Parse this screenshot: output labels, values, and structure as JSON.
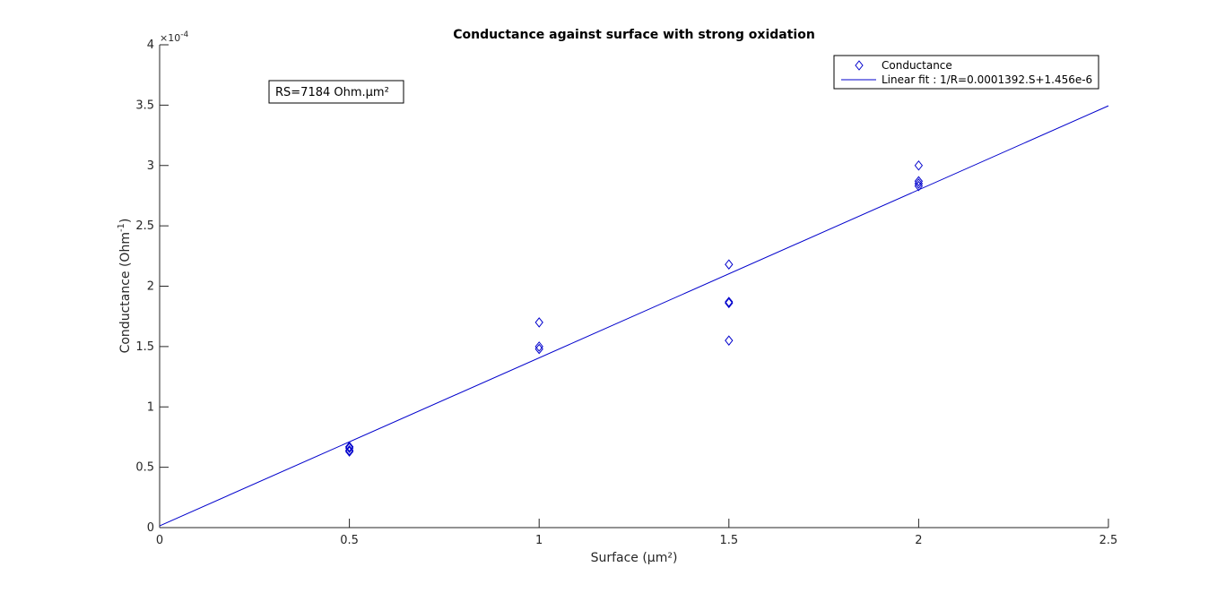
{
  "chart_data": {
    "type": "scatter",
    "title": "Conductance against surface with strong oxidation",
    "xlabel": "Surface (µm²)",
    "ylabel_main": "Conductance (Ohm",
    "ylabel_sup": "-1",
    "ylabel_close": ")",
    "y_exponent_base": "×10",
    "y_exponent_power": "-4",
    "xlim": [
      0,
      2.5
    ],
    "ylim": [
      0,
      4
    ],
    "y_scale_factor": 0.0001,
    "x_ticks": [
      0,
      0.5,
      1,
      1.5,
      2,
      2.5
    ],
    "x_tick_labels": [
      "0",
      "0.5",
      "1",
      "1.5",
      "2",
      "2.5"
    ],
    "y_ticks": [
      0,
      0.5,
      1,
      1.5,
      2,
      2.5,
      3,
      3.5,
      4
    ],
    "y_tick_labels": [
      "0",
      "0.5",
      "1",
      "1.5",
      "2",
      "2.5",
      "3",
      "3.5",
      "4"
    ],
    "grid": false,
    "legend_position": "top-right",
    "series": [
      {
        "name": "Conductance",
        "kind": "scatter",
        "marker": "diamond",
        "color": "#0000cc",
        "x": [
          0.5,
          0.5,
          0.5,
          0.5,
          1,
          1,
          1,
          1.5,
          1.5,
          1.5,
          1.5,
          2,
          2,
          2,
          2
        ],
        "y": [
          0.67,
          0.66,
          0.64,
          0.63,
          1.7,
          1.5,
          1.48,
          2.18,
          1.87,
          1.86,
          1.55,
          3.0,
          2.87,
          2.85,
          2.83
        ]
      },
      {
        "name": "Linear fit : 1/R=0.0001392.S+1.456e-6",
        "kind": "line",
        "color": "#0000cc",
        "x": [
          0,
          2.5
        ],
        "y": [
          0.01456,
          3.49456
        ]
      }
    ],
    "annotations": [
      {
        "text": "RS=7184 Ohm.µm²"
      }
    ]
  }
}
